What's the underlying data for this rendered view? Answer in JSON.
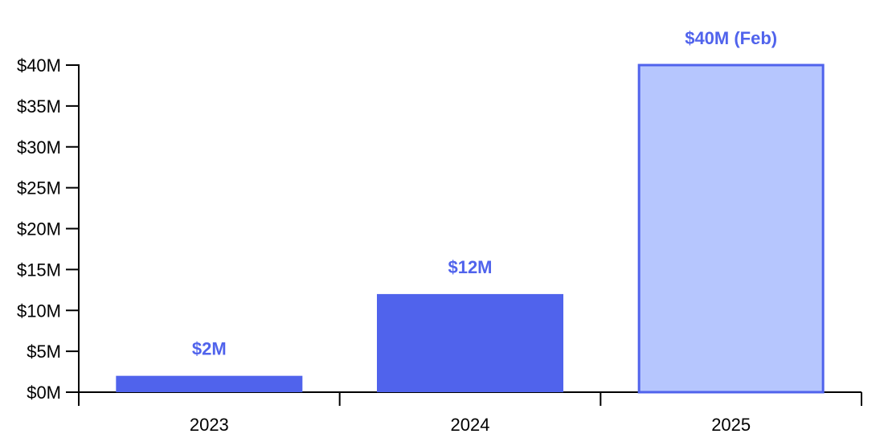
{
  "chart_data": {
    "type": "bar",
    "title": "",
    "xlabel": "",
    "ylabel": "",
    "categories": [
      "2023",
      "2024",
      "2025"
    ],
    "values": [
      2,
      12,
      40
    ],
    "data_labels": [
      "$2M",
      "$12M",
      "$40M (Feb)"
    ],
    "unit": "million USD",
    "ylim": [
      0,
      40
    ],
    "y_ticks": [
      0,
      5,
      10,
      15,
      20,
      25,
      30,
      35,
      40
    ],
    "y_tick_labels": [
      "$0M",
      "$5M",
      "$10M",
      "$15M",
      "$20M",
      "$25M",
      "$30M",
      "$35M",
      "$40M"
    ],
    "grid": false,
    "legend": "none",
    "colors": {
      "bar": "#5063ec",
      "highlight_bar_fill": "#b6c6fe",
      "highlight_bar_stroke": "#5063ec",
      "label": "#5063ec",
      "axis": "#000000"
    },
    "highlighted_category": "2025"
  }
}
